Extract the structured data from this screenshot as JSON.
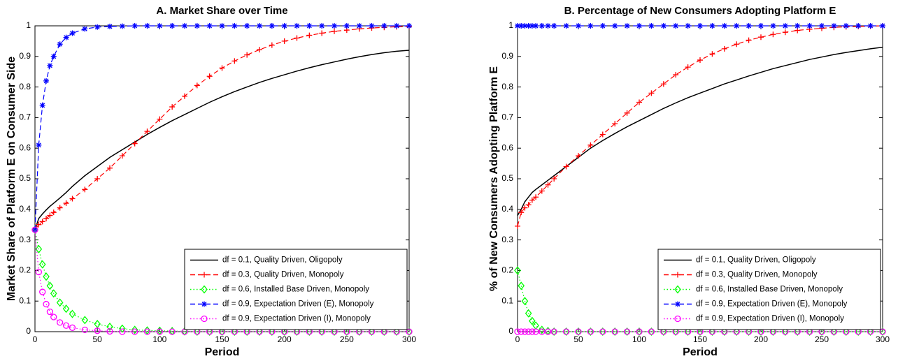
{
  "chart_data": [
    {
      "type": "line",
      "title": "A. Market Share over Time",
      "xlabel": "Period",
      "ylabel": "Market Share of Platform E on Consumer Side",
      "x": [
        0,
        3,
        6,
        9,
        12,
        15,
        20,
        25,
        30,
        40,
        50,
        60,
        70,
        80,
        90,
        100,
        110,
        120,
        130,
        140,
        150,
        160,
        170,
        180,
        190,
        200,
        210,
        220,
        230,
        240,
        250,
        260,
        270,
        280,
        290,
        300
      ],
      "xlim": [
        0,
        300
      ],
      "ylim": [
        0,
        1
      ],
      "xticks": [
        0,
        50,
        100,
        150,
        200,
        250,
        300
      ],
      "yticks": [
        0,
        0.1,
        0.2,
        0.3,
        0.4,
        0.5,
        0.6,
        0.7,
        0.8,
        0.9,
        1
      ],
      "legend": "lower right",
      "series": [
        {
          "name": "df = 0.1, Quality Driven, Oligopoly",
          "color": "#000000",
          "linestyle": "solid",
          "marker": "none",
          "values": [
            0.333,
            0.37,
            0.385,
            0.398,
            0.41,
            0.42,
            0.437,
            0.455,
            0.475,
            0.51,
            0.54,
            0.57,
            0.595,
            0.62,
            0.645,
            0.668,
            0.69,
            0.71,
            0.73,
            0.75,
            0.768,
            0.785,
            0.8,
            0.815,
            0.828,
            0.84,
            0.852,
            0.863,
            0.873,
            0.882,
            0.891,
            0.899,
            0.906,
            0.912,
            0.917,
            0.92
          ]
        },
        {
          "name": "df = 0.3, Quality Driven, Monopoly",
          "color": "#ff0000",
          "linestyle": "dashed",
          "marker": "plus",
          "values": [
            0.333,
            0.35,
            0.36,
            0.37,
            0.38,
            0.39,
            0.405,
            0.42,
            0.435,
            0.465,
            0.5,
            0.535,
            0.575,
            0.615,
            0.655,
            0.695,
            0.735,
            0.77,
            0.805,
            0.835,
            0.862,
            0.885,
            0.905,
            0.922,
            0.937,
            0.95,
            0.96,
            0.969,
            0.976,
            0.982,
            0.986,
            0.99,
            0.993,
            0.995,
            0.997,
            0.998
          ]
        },
        {
          "name": "df = 0.6, Installed Base Driven, Monopoly",
          "color": "#00ff00",
          "linestyle": "dotted",
          "marker": "diamond",
          "values": [
            0.333,
            0.27,
            0.22,
            0.18,
            0.15,
            0.125,
            0.095,
            0.075,
            0.058,
            0.038,
            0.025,
            0.016,
            0.01,
            0.006,
            0.004,
            0.003,
            0.002,
            0.001,
            0,
            0,
            0,
            0,
            0,
            0,
            0,
            0,
            0,
            0,
            0,
            0,
            0,
            0,
            0,
            0,
            0,
            0
          ]
        },
        {
          "name": "df = 0.9, Expectation Driven (E), Monopoly",
          "color": "#0000ff",
          "linestyle": "dashed",
          "marker": "star",
          "values": [
            0.333,
            0.61,
            0.74,
            0.82,
            0.87,
            0.9,
            0.94,
            0.962,
            0.976,
            0.99,
            0.996,
            0.998,
            0.999,
            1,
            1,
            1,
            1,
            1,
            1,
            1,
            1,
            1,
            1,
            1,
            1,
            1,
            1,
            1,
            1,
            1,
            1,
            1,
            1,
            1,
            1,
            1
          ]
        },
        {
          "name": "df = 0.9, Expectation Driven (I), Monopoly",
          "color": "#ff00ff",
          "linestyle": "dotted",
          "marker": "circle",
          "values": [
            0.333,
            0.195,
            0.13,
            0.09,
            0.065,
            0.048,
            0.03,
            0.02,
            0.013,
            0.006,
            0.003,
            0.001,
            0,
            0,
            0,
            0,
            0,
            0,
            0,
            0,
            0,
            0,
            0,
            0,
            0,
            0,
            0,
            0,
            0,
            0,
            0,
            0,
            0,
            0,
            0,
            0
          ]
        }
      ]
    },
    {
      "type": "line",
      "title": "B. Percentage of New Consumers Adopting Platform E",
      "xlabel": "Period",
      "ylabel": "% of New Consumers Adopting Platform E",
      "x": [
        0,
        3,
        6,
        9,
        12,
        15,
        20,
        25,
        30,
        40,
        50,
        60,
        70,
        80,
        90,
        100,
        110,
        120,
        130,
        140,
        150,
        160,
        170,
        180,
        190,
        200,
        210,
        220,
        230,
        240,
        250,
        260,
        270,
        280,
        290,
        300
      ],
      "xlim": [
        0,
        300
      ],
      "ylim": [
        0,
        1
      ],
      "xticks": [
        0,
        50,
        100,
        150,
        200,
        250,
        300
      ],
      "yticks": [
        0,
        0.1,
        0.2,
        0.3,
        0.4,
        0.5,
        0.6,
        0.7,
        0.8,
        0.9,
        1
      ],
      "legend": "lower right",
      "series": [
        {
          "name": "df = 0.1, Quality Driven, Oligopoly",
          "color": "#000000",
          "linestyle": "solid",
          "marker": "none",
          "values": [
            0.38,
            0.4,
            0.425,
            0.44,
            0.455,
            0.465,
            0.48,
            0.495,
            0.51,
            0.54,
            0.57,
            0.6,
            0.625,
            0.648,
            0.67,
            0.69,
            0.71,
            0.73,
            0.748,
            0.765,
            0.78,
            0.795,
            0.81,
            0.823,
            0.836,
            0.848,
            0.86,
            0.87,
            0.88,
            0.89,
            0.898,
            0.906,
            0.913,
            0.919,
            0.925,
            0.93
          ]
        },
        {
          "name": "df = 0.3, Quality Driven, Monopoly",
          "color": "#ff0000",
          "linestyle": "dashed",
          "marker": "plus",
          "values": [
            0.345,
            0.39,
            0.405,
            0.415,
            0.43,
            0.44,
            0.46,
            0.48,
            0.5,
            0.54,
            0.575,
            0.61,
            0.645,
            0.68,
            0.715,
            0.75,
            0.78,
            0.81,
            0.84,
            0.865,
            0.888,
            0.908,
            0.925,
            0.94,
            0.953,
            0.963,
            0.972,
            0.979,
            0.985,
            0.989,
            0.992,
            0.995,
            0.997,
            0.998,
            0.999,
            1
          ]
        },
        {
          "name": "df = 0.6, Installed Base Driven, Monopoly",
          "color": "#00ff00",
          "linestyle": "dotted",
          "marker": "diamond",
          "values": [
            0.2,
            0.15,
            0.1,
            0.06,
            0.035,
            0.02,
            0.006,
            0.002,
            0,
            0,
            0,
            0,
            0,
            0,
            0,
            0,
            0,
            0,
            0,
            0,
            0,
            0,
            0,
            0,
            0,
            0,
            0,
            0,
            0,
            0,
            0,
            0,
            0,
            0,
            0,
            0
          ]
        },
        {
          "name": "df = 0.9, Expectation Driven (E), Monopoly",
          "color": "#0000ff",
          "linestyle": "dashed",
          "marker": "star",
          "values": [
            1,
            1,
            1,
            1,
            1,
            1,
            1,
            1,
            1,
            1,
            1,
            1,
            1,
            1,
            1,
            1,
            1,
            1,
            1,
            1,
            1,
            1,
            1,
            1,
            1,
            1,
            1,
            1,
            1,
            1,
            1,
            1,
            1,
            1,
            1,
            1
          ]
        },
        {
          "name": "df = 0.9, Expectation Driven (I), Monopoly",
          "color": "#ff00ff",
          "linestyle": "dotted",
          "marker": "circle",
          "values": [
            0,
            0,
            0,
            0,
            0,
            0,
            0,
            0,
            0,
            0,
            0,
            0,
            0,
            0,
            0,
            0,
            0,
            0,
            0,
            0,
            0,
            0,
            0,
            0,
            0,
            0,
            0,
            0,
            0,
            0,
            0,
            0,
            0,
            0,
            0,
            0
          ]
        }
      ]
    }
  ]
}
